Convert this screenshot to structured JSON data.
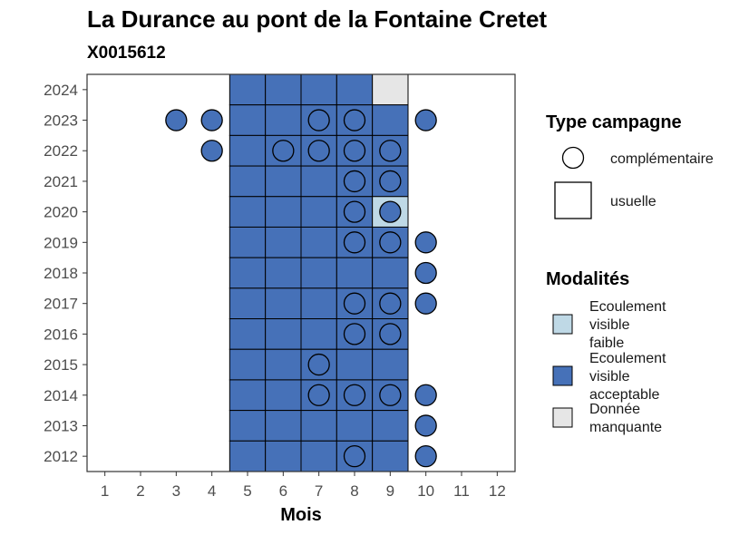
{
  "chart_data": {
    "type": "heatmap",
    "title": "La Durance au pont de la Fontaine Cretet",
    "subtitle": "X0015612",
    "xlabel": "Mois",
    "ylabel": "",
    "x_ticks": [
      "1",
      "2",
      "3",
      "4",
      "5",
      "6",
      "7",
      "8",
      "9",
      "10",
      "11",
      "12"
    ],
    "y_ticks": [
      "2012",
      "2013",
      "2014",
      "2015",
      "2016",
      "2017",
      "2018",
      "2019",
      "2020",
      "2021",
      "2022",
      "2023",
      "2024"
    ],
    "xlim": [
      0.5,
      12.5
    ],
    "ylim": [
      2011.5,
      2024.5
    ],
    "grid": false,
    "legend_position": "right",
    "legend_type": {
      "title": "Type campagne",
      "items": [
        {
          "label": "complémentaire",
          "shape": "circle"
        },
        {
          "label": "usuelle",
          "shape": "square"
        }
      ]
    },
    "legend_modalites": {
      "title": "Modalités",
      "items": [
        {
          "label_lines": [
            "Ecoulement",
            "visible",
            "faible"
          ],
          "color": "#bfd9e6"
        },
        {
          "label_lines": [
            "Ecoulement",
            "visible",
            "acceptable"
          ],
          "color": "#4671b8"
        },
        {
          "label_lines": [
            "Donnée",
            "manquante"
          ],
          "color": "#e6e6e6"
        }
      ]
    },
    "colors": {
      "Ecoulement visible faible": "#bfd9e6",
      "Ecoulement visible acceptable": "#4671b8",
      "Donnée manquante": "#e6e6e6"
    },
    "usuelle": [
      {
        "year": 2024,
        "months": [
          5,
          6,
          7,
          8
        ],
        "modalite": "Ecoulement visible acceptable"
      },
      {
        "year": 2024,
        "months": [
          9
        ],
        "modalite": "Donnée manquante"
      },
      {
        "year": 2023,
        "months": [
          5,
          6,
          7,
          8,
          9
        ],
        "modalite": "Ecoulement visible acceptable"
      },
      {
        "year": 2022,
        "months": [
          5,
          6,
          7,
          8,
          9
        ],
        "modalite": "Ecoulement visible acceptable"
      },
      {
        "year": 2021,
        "months": [
          5,
          6,
          7,
          8,
          9
        ],
        "modalite": "Ecoulement visible acceptable"
      },
      {
        "year": 2020,
        "months": [
          5,
          6,
          7,
          8
        ],
        "modalite": "Ecoulement visible acceptable"
      },
      {
        "year": 2020,
        "months": [
          9
        ],
        "modalite": "Ecoulement visible faible"
      },
      {
        "year": 2019,
        "months": [
          5,
          6,
          7,
          8,
          9
        ],
        "modalite": "Ecoulement visible acceptable"
      },
      {
        "year": 2018,
        "months": [
          5,
          6,
          7,
          8,
          9
        ],
        "modalite": "Ecoulement visible acceptable"
      },
      {
        "year": 2017,
        "months": [
          5,
          6,
          7,
          8,
          9
        ],
        "modalite": "Ecoulement visible acceptable"
      },
      {
        "year": 2016,
        "months": [
          5,
          6,
          7,
          8,
          9
        ],
        "modalite": "Ecoulement visible acceptable"
      },
      {
        "year": 2015,
        "months": [
          5,
          6,
          7,
          8,
          9
        ],
        "modalite": "Ecoulement visible acceptable"
      },
      {
        "year": 2014,
        "months": [
          5,
          6,
          7,
          8,
          9
        ],
        "modalite": "Ecoulement visible acceptable"
      },
      {
        "year": 2013,
        "months": [
          5,
          6,
          7,
          8,
          9
        ],
        "modalite": "Ecoulement visible acceptable"
      },
      {
        "year": 2012,
        "months": [
          5,
          6,
          7,
          8,
          9
        ],
        "modalite": "Ecoulement visible acceptable"
      }
    ],
    "complementaire": [
      {
        "year": 2023,
        "months": [
          3,
          4,
          7,
          8,
          10
        ],
        "modalite": "Ecoulement visible acceptable"
      },
      {
        "year": 2022,
        "months": [
          4,
          6,
          7,
          8,
          9
        ],
        "modalite": "Ecoulement visible acceptable"
      },
      {
        "year": 2021,
        "months": [
          8,
          9
        ],
        "modalite": "Ecoulement visible acceptable"
      },
      {
        "year": 2020,
        "months": [
          8,
          9
        ],
        "modalite": "Ecoulement visible acceptable"
      },
      {
        "year": 2019,
        "months": [
          8,
          9,
          10
        ],
        "modalite": "Ecoulement visible acceptable"
      },
      {
        "year": 2018,
        "months": [
          10
        ],
        "modalite": "Ecoulement visible acceptable"
      },
      {
        "year": 2017,
        "months": [
          8,
          9,
          10
        ],
        "modalite": "Ecoulement visible acceptable"
      },
      {
        "year": 2016,
        "months": [
          8,
          9
        ],
        "modalite": "Ecoulement visible acceptable"
      },
      {
        "year": 2015,
        "months": [
          7
        ],
        "modalite": "Ecoulement visible acceptable"
      },
      {
        "year": 2014,
        "months": [
          7,
          8,
          9,
          10
        ],
        "modalite": "Ecoulement visible acceptable"
      },
      {
        "year": 2013,
        "months": [
          10
        ],
        "modalite": "Ecoulement visible acceptable"
      },
      {
        "year": 2012,
        "months": [
          8,
          10
        ],
        "modalite": "Ecoulement visible acceptable"
      }
    ]
  }
}
